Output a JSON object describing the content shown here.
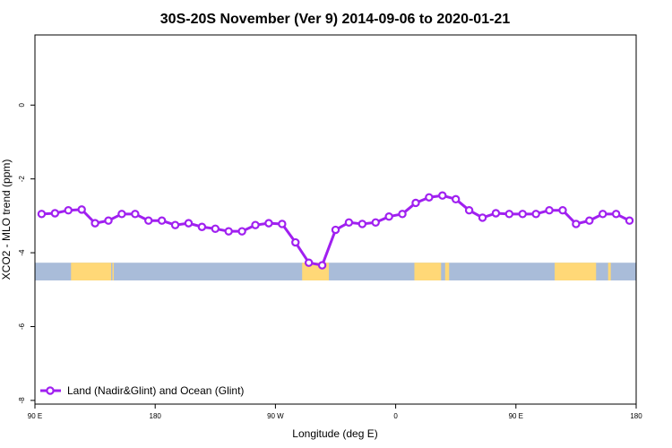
{
  "chart_data": {
    "type": "line",
    "title": "30S-20S November (Ver 9)   2014-09-06 to 2020-01-21",
    "xlabel": "Longitude (deg E)",
    "ylabel": "XCO2 - MLO trend (ppm)",
    "xlim": [
      90,
      540
    ],
    "ylim": [
      -8.1,
      1.9
    ],
    "x_ticks": [
      {
        "value": 90,
        "label": "90 E"
      },
      {
        "value": 180,
        "label": "180"
      },
      {
        "value": 270,
        "label": "90 W"
      },
      {
        "value": 360,
        "label": "0"
      },
      {
        "value": 450,
        "label": "90 E"
      },
      {
        "value": 540,
        "label": "180"
      }
    ],
    "y_ticks": [
      {
        "value": 0,
        "label": "0"
      },
      {
        "value": -2,
        "label": "-2"
      },
      {
        "value": -4,
        "label": "-4"
      },
      {
        "value": -6,
        "label": "-6"
      },
      {
        "value": -8,
        "label": "-8"
      }
    ],
    "grid": false,
    "legend_position": "bottom-left",
    "series": [
      {
        "name": "Land (Nadir&Glint) and Ocean (Glint)",
        "color": "#a020f0",
        "marker": "open-circle",
        "x": [
          95,
          105,
          115,
          125,
          135,
          145,
          155,
          165,
          175,
          185,
          195,
          205,
          215,
          225,
          235,
          245,
          255,
          265,
          275,
          285,
          295,
          305,
          315,
          325,
          335,
          345,
          355,
          365,
          375,
          385,
          395,
          405,
          415,
          425,
          435,
          445,
          455,
          465,
          475,
          485,
          495,
          505,
          515,
          525,
          535
        ],
        "y": [
          -2.95,
          -2.93,
          -2.85,
          -2.83,
          -3.2,
          -3.13,
          -2.95,
          -2.95,
          -3.13,
          -3.13,
          -3.25,
          -3.2,
          -3.3,
          -3.35,
          -3.42,
          -3.42,
          -3.25,
          -3.2,
          -3.22,
          -3.72,
          -4.27,
          -4.34,
          -3.38,
          -3.18,
          -3.22,
          -3.18,
          -3.02,
          -2.95,
          -2.65,
          -2.5,
          -2.45,
          -2.55,
          -2.85,
          -3.05,
          -2.93,
          -2.95,
          -2.95,
          -2.95,
          -2.85,
          -2.85,
          -3.22,
          -3.13,
          -2.95,
          -2.95,
          -3.13
        ]
      }
    ],
    "surface_band": {
      "y_top": -4.27,
      "y_bottom": -4.75,
      "ocean_color": "#a9bcd9",
      "land_color": "#ffd877",
      "land_spans": [
        [
          117,
          147
        ],
        [
          148,
          149
        ],
        [
          290,
          310
        ],
        [
          374,
          394
        ],
        [
          397,
          400
        ],
        [
          479,
          510
        ],
        [
          519,
          521
        ]
      ]
    }
  }
}
